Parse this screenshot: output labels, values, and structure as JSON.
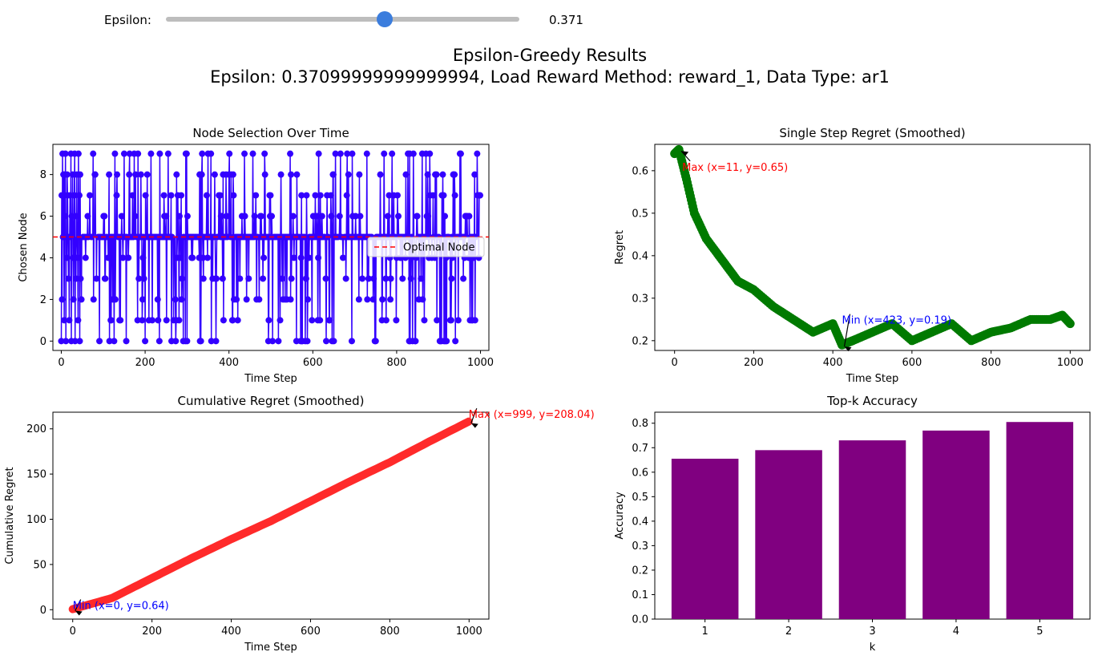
{
  "slider": {
    "label": "Epsilon:",
    "value": 0.371,
    "value_text": "0.371",
    "min": 0,
    "max": 0.6
  },
  "figure": {
    "title": "Epsilon-Greedy Results",
    "subtitle": "Epsilon: 0.37099999999999994, Load Reward Method: reward_1, Data Type: ar1"
  },
  "colors": {
    "node": "#3300ff",
    "optimal": "#ff0000",
    "regret": "#007a00",
    "cumulative": "#ff2a2a",
    "bar": "#800080",
    "slider": "#3b7ddd"
  },
  "chart_data": [
    {
      "type": "line",
      "title": "Node Selection Over Time",
      "xlabel": "Time Step",
      "ylabel": "Chosen Node",
      "xlim": [
        -20,
        1020
      ],
      "ylim": [
        -0.45,
        9.45
      ],
      "xticks": [
        "0",
        "200",
        "400",
        "600",
        "800",
        "1000"
      ],
      "yticks": [
        "0",
        "2",
        "4",
        "6",
        "8"
      ],
      "optimal_node": 5,
      "legend": {
        "entries": [
          "Optimal Node"
        ],
        "placement": "center-right"
      },
      "series": [
        {
          "name": "",
          "x_range": [
            0,
            999
          ],
          "sample_values": [
            0,
            7,
            2,
            9,
            5,
            8,
            5,
            1,
            8,
            6,
            9,
            0,
            5,
            4,
            8,
            7,
            5,
            3,
            5,
            1,
            5,
            7,
            5,
            9,
            0,
            6,
            5,
            8,
            4,
            2,
            5,
            7,
            9,
            0,
            5,
            3,
            6,
            8,
            5,
            4,
            1,
            9,
            5,
            7,
            0,
            8,
            3,
            5,
            2,
            5
          ]
        }
      ]
    },
    {
      "type": "line",
      "title": "Single Step Regret (Smoothed)",
      "xlabel": "Time Step",
      "ylabel": "Regret",
      "xlim": [
        -50,
        1050
      ],
      "ylim": [
        0.177,
        0.662
      ],
      "xticks": [
        "0",
        "200",
        "400",
        "600",
        "800",
        "1000"
      ],
      "yticks": [
        "0.2",
        "0.3",
        "0.4",
        "0.5",
        "0.6"
      ],
      "series": [
        {
          "name": "",
          "x": [
            0,
            11,
            30,
            50,
            80,
            120,
            160,
            200,
            250,
            300,
            350,
            400,
            423,
            450,
            500,
            550,
            600,
            650,
            700,
            750,
            800,
            850,
            900,
            950,
            980,
            1000
          ],
          "y": [
            0.64,
            0.65,
            0.58,
            0.5,
            0.44,
            0.39,
            0.34,
            0.32,
            0.28,
            0.25,
            0.22,
            0.24,
            0.19,
            0.2,
            0.22,
            0.24,
            0.2,
            0.22,
            0.24,
            0.2,
            0.22,
            0.23,
            0.25,
            0.25,
            0.26,
            0.24
          ]
        }
      ],
      "annotations": [
        {
          "text": "Max (x=11, y=0.65)",
          "x": 11,
          "y": 0.65,
          "text_x": 11,
          "text_y": 0.6,
          "color": "#ff0000"
        },
        {
          "text": "Min (x=423, y=0.19)",
          "x": 423,
          "y": 0.19,
          "text_x": 423,
          "text_y": 0.24,
          "color": "#0000ff"
        }
      ]
    },
    {
      "type": "line",
      "title": "Cumulative Regret (Smoothed)",
      "xlabel": "Time Step",
      "ylabel": "Cumulative Regret",
      "xlim": [
        -50,
        1050
      ],
      "ylim": [
        -10.4,
        218.4
      ],
      "xticks": [
        "0",
        "200",
        "400",
        "600",
        "800",
        "1000"
      ],
      "yticks": [
        "0",
        "50",
        "100",
        "150",
        "200"
      ],
      "series": [
        {
          "name": "",
          "x": [
            0,
            100,
            200,
            300,
            400,
            500,
            600,
            700,
            800,
            900,
            999
          ],
          "y": [
            0.64,
            13,
            35,
            57,
            78,
            98,
            120,
            142,
            163,
            186,
            208.04
          ]
        }
      ],
      "annotations": [
        {
          "text": "Max (x=999, y=208.04)",
          "x": 999,
          "y": 208.04,
          "text_x": 999,
          "text_y": 212,
          "color": "#ff0000"
        },
        {
          "text": "Min (x=0, y=0.64)",
          "x": 0,
          "y": 0.64,
          "text_x": 0,
          "text_y": 0.64,
          "color": "#0000ff"
        }
      ]
    },
    {
      "type": "bar",
      "title": "Top-k Accuracy",
      "xlabel": "k",
      "ylabel": "Accuracy",
      "ylim": [
        0,
        0.845
      ],
      "yticks": [
        "0.0",
        "0.1",
        "0.2",
        "0.3",
        "0.4",
        "0.5",
        "0.6",
        "0.7",
        "0.8"
      ],
      "categories": [
        "1",
        "2",
        "3",
        "4",
        "5"
      ],
      "values": [
        0.655,
        0.69,
        0.73,
        0.77,
        0.805
      ]
    }
  ]
}
